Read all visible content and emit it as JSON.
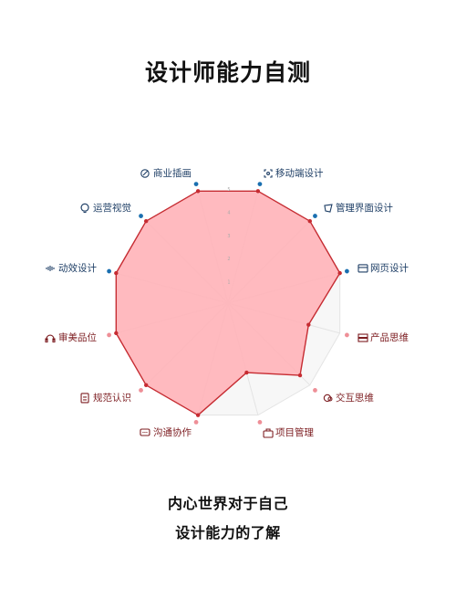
{
  "title": "设计师能力自测",
  "taglines": [
    "内心世界对于自己",
    "设计能力的了解"
  ],
  "colors": {
    "fill": "#ffb3b8",
    "stroke": "#c62c32",
    "grid": "#e4e4e4",
    "dot_blue": "#1a6fb0",
    "dot_red": "#c62c32",
    "dot_pink": "#ee8f97",
    "label_blue": "#1f3f66",
    "label_red": "#7d1e22"
  },
  "chart_data": {
    "type": "radar",
    "title": "设计师能力自测",
    "scale": [
      0,
      5
    ],
    "tick_labels": [
      "1",
      "2",
      "3",
      "4",
      "5"
    ],
    "categories": [
      "商业插画",
      "移动端设计",
      "管理界面设计",
      "网页设计",
      "产品思维",
      "交互思维",
      "项目管理",
      "沟通协作",
      "规范认识",
      "审美品位",
      "动效设计",
      "运营视觉"
    ],
    "category_icons": [
      "compass-icon",
      "scan-icon",
      "vector-path-icon",
      "browser-window-icon",
      "server-stack-icon",
      "circles-icon",
      "briefcase-icon",
      "chat-bubble-icon",
      "document-icon",
      "headphones-icon",
      "audio-wave-icon",
      "lightbulb-icon"
    ],
    "label_colors": [
      "blue",
      "blue",
      "blue",
      "blue",
      "red",
      "red",
      "red",
      "red",
      "red",
      "red",
      "blue",
      "blue"
    ],
    "series": [
      {
        "values": [
          5.0,
          5.0,
          5.0,
          5.0,
          3.6,
          4.4,
          3.1,
          5.0,
          5.0,
          5.0,
          5.0,
          5.0
        ]
      }
    ]
  }
}
